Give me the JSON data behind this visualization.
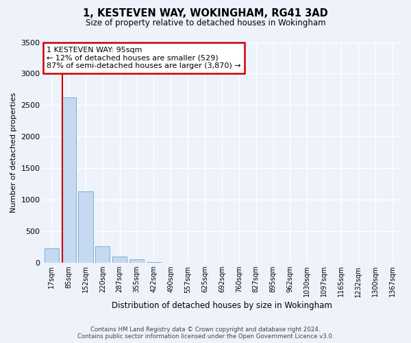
{
  "title": "1, KESTEVEN WAY, WOKINGHAM, RG41 3AD",
  "subtitle": "Size of property relative to detached houses in Wokingham",
  "xlabel": "Distribution of detached houses by size in Wokingham",
  "ylabel": "Number of detached properties",
  "categories": [
    "17sqm",
    "85sqm",
    "152sqm",
    "220sqm",
    "287sqm",
    "355sqm",
    "422sqm",
    "490sqm",
    "557sqm",
    "625sqm",
    "692sqm",
    "760sqm",
    "827sqm",
    "895sqm",
    "962sqm",
    "1030sqm",
    "1097sqm",
    "1165sqm",
    "1232sqm",
    "1300sqm",
    "1367sqm"
  ],
  "values": [
    230,
    2620,
    1130,
    265,
    100,
    50,
    10,
    0,
    0,
    0,
    0,
    0,
    0,
    0,
    0,
    0,
    0,
    0,
    0,
    0,
    0
  ],
  "bar_color": "#c5d9f0",
  "bar_edge_color": "#7aafd4",
  "property_line_color": "#cc0000",
  "annotation_text": "1 KESTEVEN WAY: 95sqm\n← 12% of detached houses are smaller (529)\n87% of semi-detached houses are larger (3,870) →",
  "annotation_box_color": "#ffffff",
  "annotation_box_edge_color": "#cc0000",
  "ylim": [
    0,
    3500
  ],
  "yticks": [
    0,
    500,
    1000,
    1500,
    2000,
    2500,
    3000,
    3500
  ],
  "background_color": "#eef2fb",
  "grid_color": "#ffffff",
  "footer_line1": "Contains HM Land Registry data © Crown copyright and database right 2024.",
  "footer_line2": "Contains public sector information licensed under the Open Government Licence v3.0."
}
